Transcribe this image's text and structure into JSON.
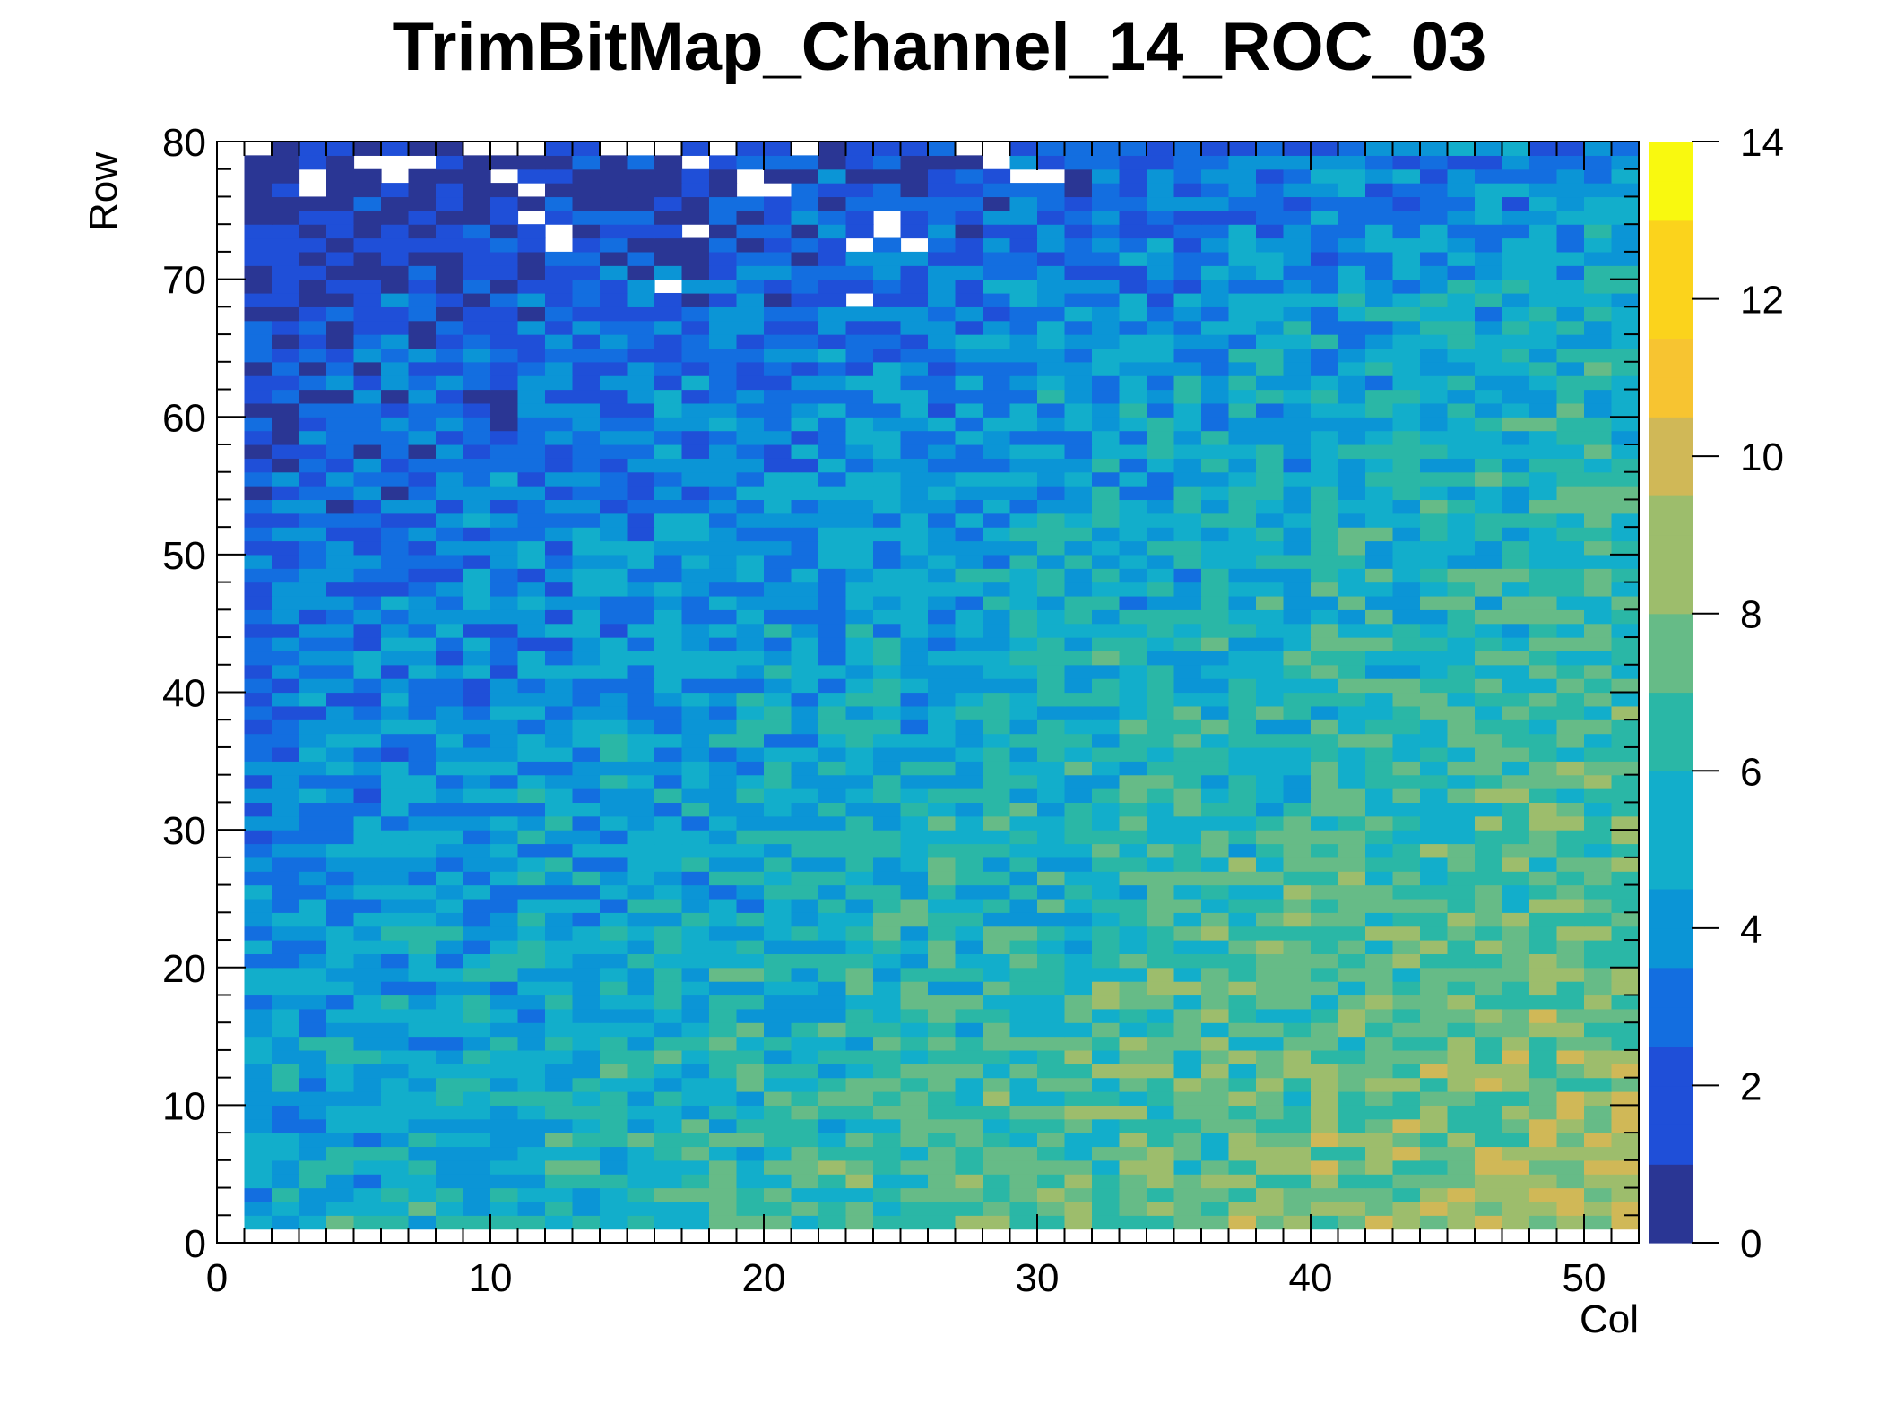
{
  "chart_data": {
    "type": "heatmap",
    "title": "TrimBitMap_Channel_14_ROC_03",
    "xlabel": "Col",
    "ylabel": "Row",
    "xlim": [
      0,
      52
    ],
    "ylim": [
      0,
      80
    ],
    "zlim": [
      0,
      14
    ],
    "x_ticks": [
      "0",
      "10",
      "20",
      "30",
      "40",
      "50"
    ],
    "y_ticks": [
      "0",
      "10",
      "20",
      "30",
      "40",
      "50",
      "60",
      "70",
      "80"
    ],
    "z_ticks": [
      "0",
      "2",
      "4",
      "6",
      "8",
      "10",
      "12",
      "14"
    ],
    "populated_cols": [
      1,
      51
    ],
    "populated_rows": [
      1,
      79
    ],
    "empty_cells": [
      [
        1,
        79
      ],
      [
        5,
        78
      ],
      [
        6,
        78
      ],
      [
        7,
        78
      ],
      [
        9,
        79
      ],
      [
        10,
        79
      ],
      [
        11,
        79
      ],
      [
        14,
        79
      ],
      [
        15,
        79
      ],
      [
        16,
        79
      ],
      [
        17,
        78
      ],
      [
        18,
        79
      ],
      [
        21,
        79
      ],
      [
        27,
        79
      ],
      [
        28,
        79
      ],
      [
        28,
        78
      ],
      [
        29,
        77
      ],
      [
        30,
        77
      ],
      [
        3,
        76
      ],
      [
        3,
        77
      ],
      [
        6,
        77
      ],
      [
        10,
        77
      ],
      [
        11,
        76
      ],
      [
        19,
        77
      ],
      [
        19,
        76
      ],
      [
        20,
        76
      ],
      [
        11,
        74
      ],
      [
        12,
        73
      ],
      [
        12,
        72
      ],
      [
        24,
        74
      ],
      [
        24,
        73
      ],
      [
        23,
        72
      ],
      [
        25,
        72
      ],
      [
        17,
        73
      ],
      [
        16,
        69
      ],
      [
        23,
        68
      ]
    ],
    "description": "Per-pixel trim-bit value (0-14) over 52 columns x 80 rows; values rise from about 2-5 at high rows / low columns to about 11-14 at low rows / high columns",
    "colorscale": [
      "#2a3694",
      "#1f4fd8",
      "#136ee0",
      "#0b95d6",
      "#12aecb",
      "#2ab7a6",
      "#66bb87",
      "#9dbd6c",
      "#d0b857",
      "#f7c431",
      "#fbd31c",
      "#f9f90f"
    ]
  }
}
